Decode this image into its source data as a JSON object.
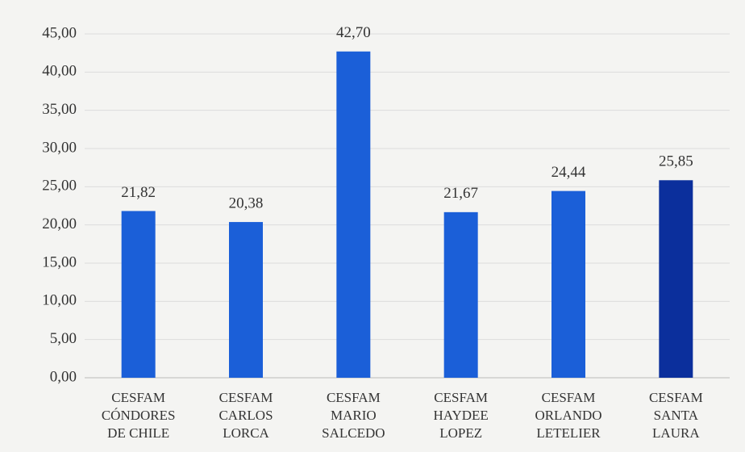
{
  "chart_data": {
    "type": "bar",
    "categories": [
      "CESFAM\nCÓNDORES\nDE CHILE",
      "CESFAM\nCARLOS\nLORCA",
      "CESFAM\nMARIO\nSALCEDO",
      "CESFAM\nHAYDEE\nLOPEZ",
      "CESFAM\nORLANDO\nLETELIER",
      "CESFAM\nSANTA\nLAURA"
    ],
    "values": [
      21.82,
      20.38,
      42.7,
      21.67,
      24.44,
      25.85
    ],
    "value_labels": [
      "21,82",
      "20,38",
      "42,70",
      "21,67",
      "24,44",
      "25,85"
    ],
    "colors": [
      "#1b5fd8",
      "#1b5fd8",
      "#1b5fd8",
      "#1b5fd8",
      "#1b5fd8",
      "#0b2f9c"
    ],
    "ylim": [
      0,
      45
    ],
    "yticks": [
      {
        "value": 0,
        "label": "0,00"
      },
      {
        "value": 5,
        "label": "5,00"
      },
      {
        "value": 10,
        "label": "10,00"
      },
      {
        "value": 15,
        "label": "15,00"
      },
      {
        "value": 20,
        "label": "20,00"
      },
      {
        "value": 25,
        "label": "25,00"
      },
      {
        "value": 30,
        "label": "30,00"
      },
      {
        "value": 35,
        "label": "35,00"
      },
      {
        "value": 40,
        "label": "40,00"
      },
      {
        "value": 45,
        "label": "45,00"
      }
    ],
    "grid": true
  }
}
